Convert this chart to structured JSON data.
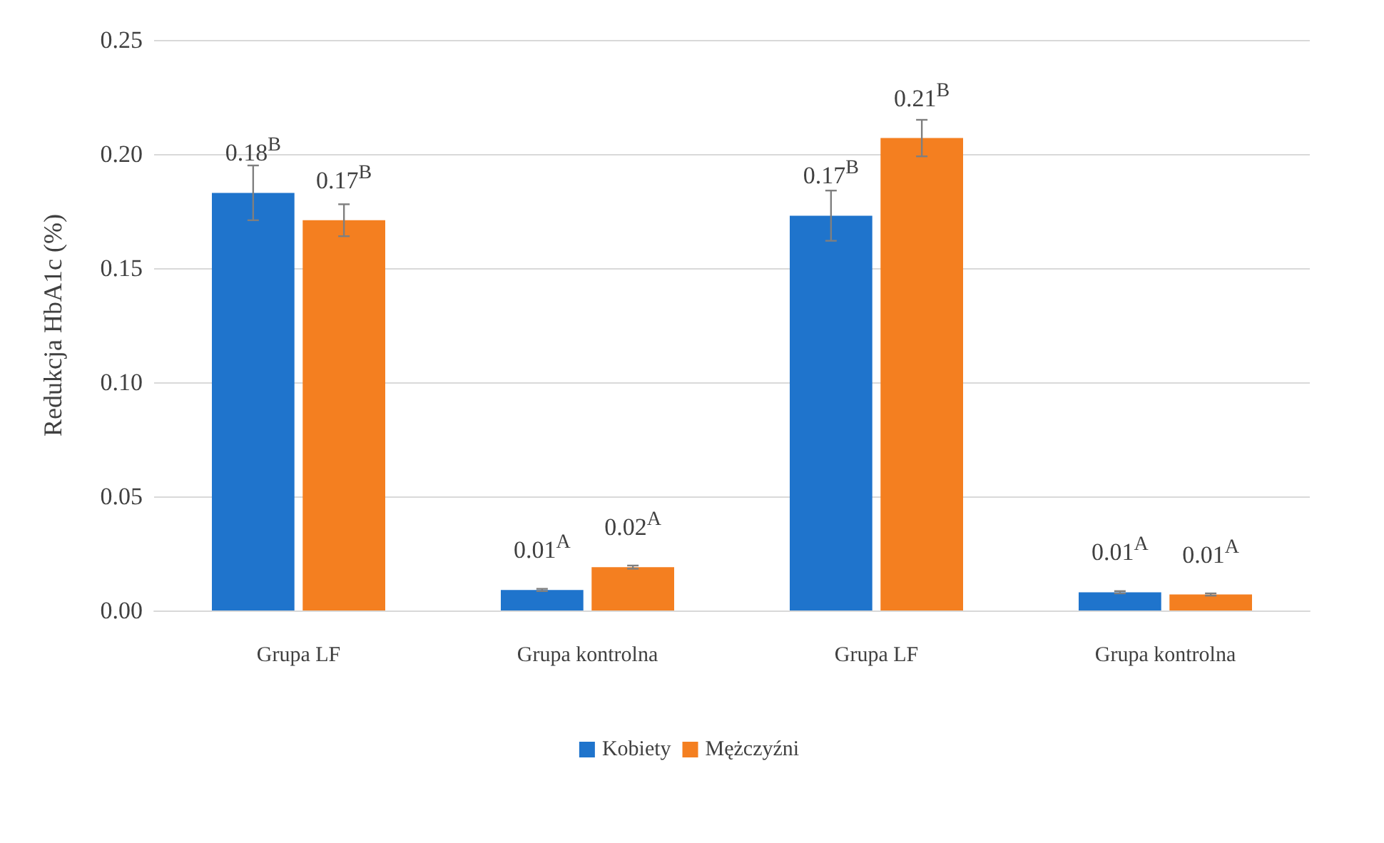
{
  "chart_data": {
    "type": "bar",
    "ylabel": "Redukcja HbA1c (%)",
    "categories": [
      "Grupa LF",
      "Grupa kontrolna",
      "Grupa LF",
      "Grupa kontrolna"
    ],
    "series": [
      {
        "name": "Kobiety",
        "color": "#1f74cc",
        "values": [
          0.183,
          0.009,
          0.173,
          0.008
        ],
        "errors": [
          0.012,
          0.0005,
          0.011,
          0.0005
        ],
        "value_labels": [
          "0.18$^{B}$",
          "0.01$^{A}$",
          "0.17$^{B}$",
          "0.01$^{A}$"
        ]
      },
      {
        "name": "Mężczyźni",
        "color": "#f47f20",
        "values": [
          0.171,
          0.019,
          0.207,
          0.007
        ],
        "errors": [
          0.007,
          0.0007,
          0.008,
          0.0005
        ],
        "value_labels": [
          "0.17$^{B}$",
          "0.02$^{A}$",
          "0.21$^{B}$",
          "0.01$^{A}$"
        ]
      }
    ],
    "ylim": [
      0,
      0.25
    ],
    "yticks": [
      {
        "value": 0,
        "label": "0.00"
      },
      {
        "value": 0.05,
        "label": "0.05"
      },
      {
        "value": 0.1,
        "label": "0.10"
      },
      {
        "value": 0.15,
        "label": "0.15"
      },
      {
        "value": 0.2,
        "label": "0.20"
      },
      {
        "value": 0.25,
        "label": "0.25"
      }
    ],
    "grid": "y",
    "legend": "bottom"
  }
}
